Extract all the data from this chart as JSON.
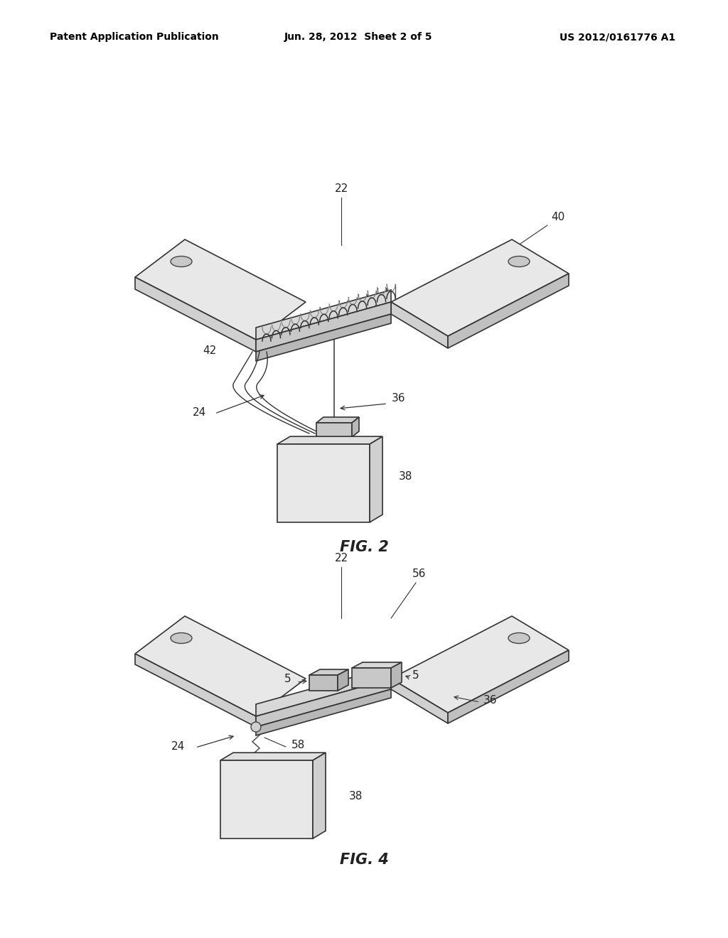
{
  "background_color": "#ffffff",
  "header_left": "Patent Application Publication",
  "header_center": "Jun. 28, 2012  Sheet 2 of 5",
  "header_right": "US 2012/0161776 A1",
  "header_fontsize": 10,
  "fig2_label": "FIG. 2",
  "fig4_label": "FIG. 4",
  "line_color": "#333333",
  "annotation_fontsize": 11
}
